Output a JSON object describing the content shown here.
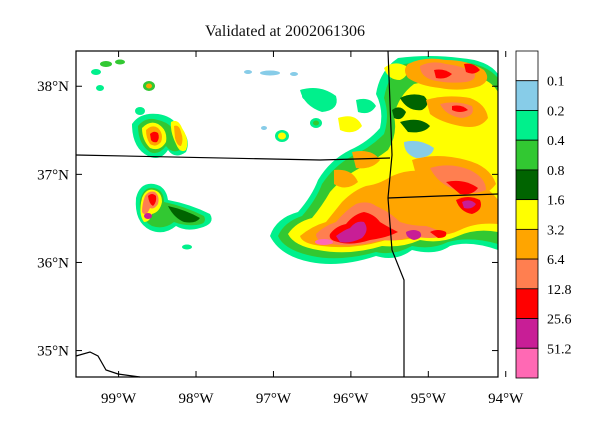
{
  "title": "Validated at 2002061306",
  "map": {
    "lon_labels": [
      "99°W",
      "98°W",
      "97°W",
      "96°W",
      "95°W",
      "94°W"
    ],
    "lat_labels": [
      "38°N",
      "37°N",
      "36°N",
      "35°N"
    ],
    "lon_values": [
      -99,
      -98,
      -97,
      -96,
      -95,
      -94
    ],
    "lat_values": [
      38,
      37,
      36,
      35
    ],
    "lon_range": [
      -99.55,
      -94.1
    ],
    "lat_range": [
      34.7,
      38.4
    ]
  },
  "colorbar": {
    "levels": [
      "0.1",
      "0.2",
      "0.4",
      "0.8",
      "1.6",
      "3.2",
      "6.4",
      "12.8",
      "25.6",
      "51.2"
    ],
    "colors": [
      "#ffffff",
      "#87cce8",
      "#00f08c",
      "#32c832",
      "#006400",
      "#ffff00",
      "#ffa500",
      "#ff7f50",
      "#ff0000",
      "#c81e96",
      "#ff69b4"
    ]
  }
}
